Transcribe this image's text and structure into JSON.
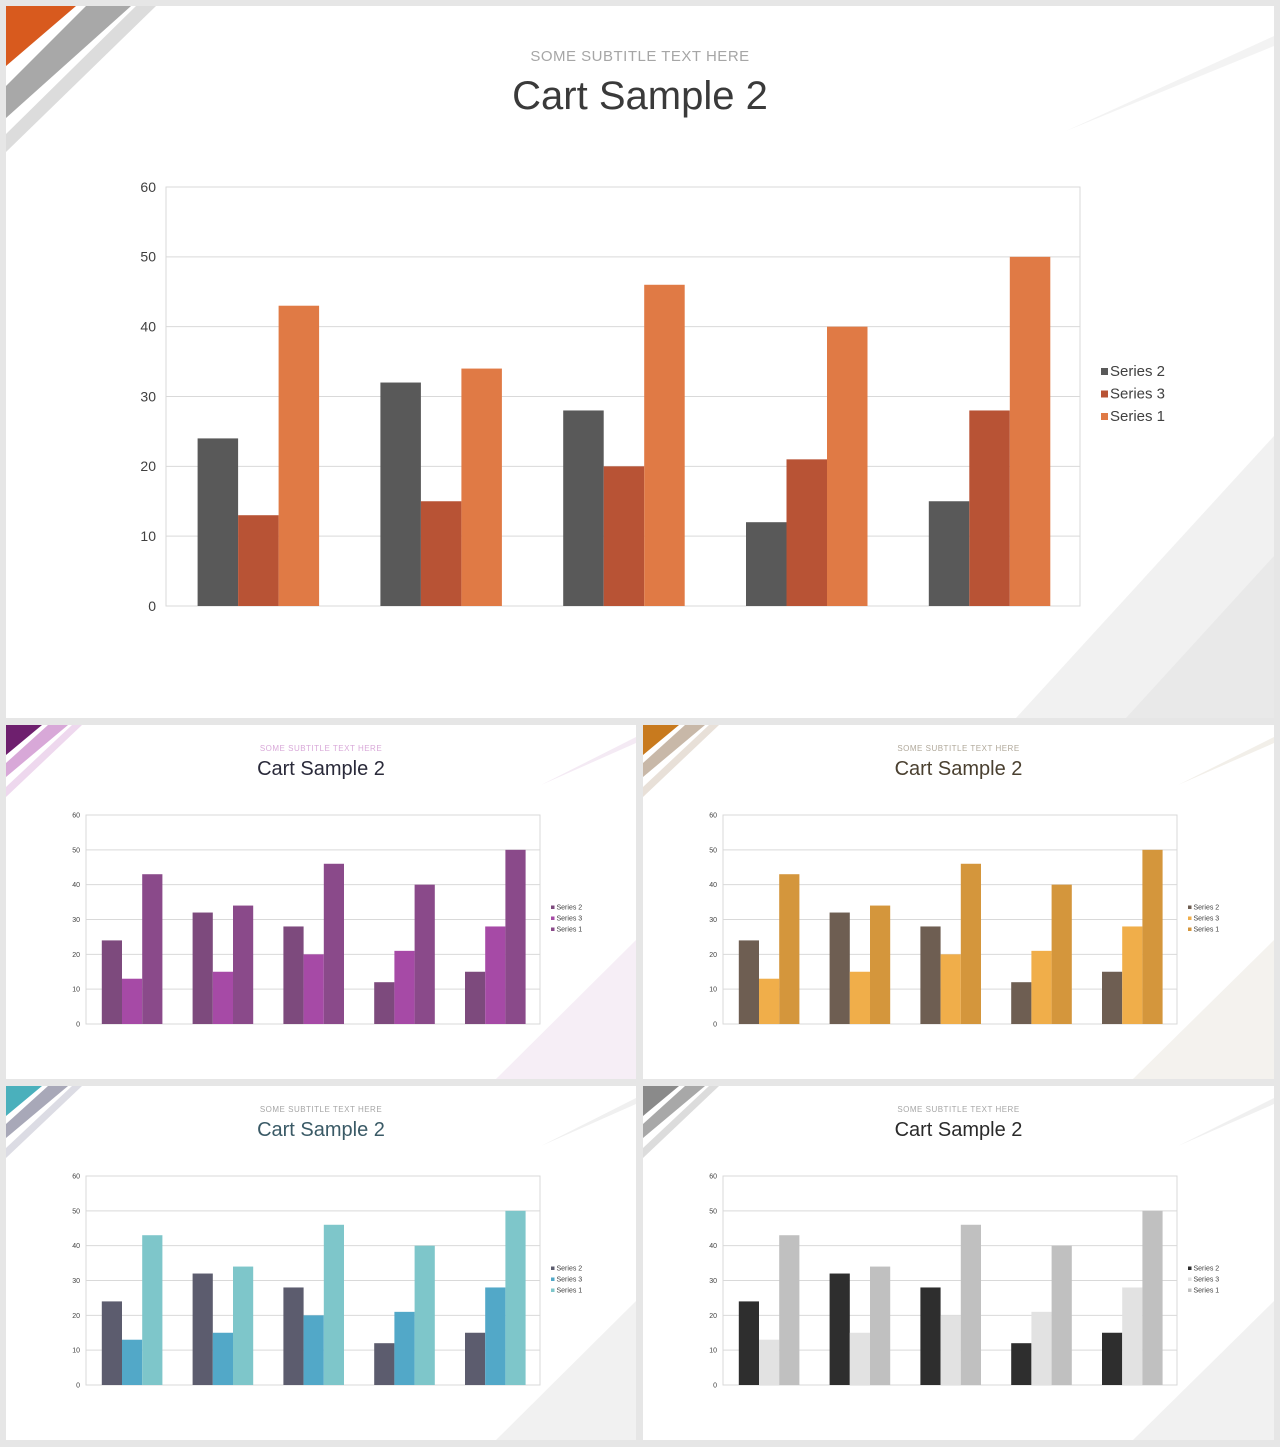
{
  "slides": [
    {
      "id": "main",
      "subtitle": "SOME  SUBTITLE  TEXT HERE",
      "title": "Cart Sample 2",
      "title_color": "#3a3a3a",
      "subtitle_color": "#a6a6a6",
      "accent_color": "#d85a1e",
      "series_colors": {
        "Series 2": "#595959",
        "Series 3": "#b85335",
        "Series 1": "#e07a45"
      },
      "chart_data": {
        "type": "bar",
        "categories": [
          "",
          "",
          "",
          "",
          ""
        ],
        "series": [
          {
            "name": "Series 2",
            "values": [
              24,
              32,
              28,
              12,
              15
            ]
          },
          {
            "name": "Series 3",
            "values": [
              13,
              15,
              20,
              21,
              28
            ]
          },
          {
            "name": "Series 1",
            "values": [
              43,
              34,
              46,
              40,
              50
            ]
          }
        ],
        "ylim": [
          0,
          60
        ],
        "yticks": [
          0,
          10,
          20,
          30,
          40,
          50,
          60
        ],
        "grid": true,
        "legend_position": "right"
      }
    },
    {
      "id": "s1",
      "subtitle": "SOME  SUBTITLE  TEXT HERE",
      "title": "Cart Sample 2",
      "title_color": "#2a2a3a",
      "subtitle_color": "#d9a9d9",
      "accent_color": "#6e1f6e",
      "series_colors": {
        "Series 2": "#7d4a7d",
        "Series 3": "#a64aa6",
        "Series 1": "#8a4a8a"
      },
      "chart_data": {
        "type": "bar",
        "categories": [
          "",
          "",
          "",
          "",
          ""
        ],
        "series": [
          {
            "name": "Series 2",
            "values": [
              24,
              32,
              28,
              12,
              15
            ]
          },
          {
            "name": "Series 3",
            "values": [
              13,
              15,
              20,
              21,
              28
            ]
          },
          {
            "name": "Series 1",
            "values": [
              43,
              34,
              46,
              40,
              50
            ]
          }
        ],
        "ylim": [
          0,
          60
        ],
        "yticks": [
          0,
          10,
          20,
          30,
          40,
          50,
          60
        ],
        "grid": true,
        "legend_position": "right"
      }
    },
    {
      "id": "s2",
      "subtitle": "SOME  SUBTITLE  TEXT HERE",
      "title": "Cart Sample 2",
      "title_color": "#4a4030",
      "subtitle_color": "#b0a89a",
      "accent_color": "#c87a1e",
      "series_colors": {
        "Series 2": "#6e5e52",
        "Series 3": "#f0ae4a",
        "Series 1": "#d4963c"
      },
      "chart_data": {
        "type": "bar",
        "categories": [
          "",
          "",
          "",
          "",
          ""
        ],
        "series": [
          {
            "name": "Series 2",
            "values": [
              24,
              32,
              28,
              12,
              15
            ]
          },
          {
            "name": "Series 3",
            "values": [
              13,
              15,
              20,
              21,
              28
            ]
          },
          {
            "name": "Series 1",
            "values": [
              43,
              34,
              46,
              40,
              50
            ]
          }
        ],
        "ylim": [
          0,
          60
        ],
        "yticks": [
          0,
          10,
          20,
          30,
          40,
          50,
          60
        ],
        "grid": true,
        "legend_position": "right"
      }
    },
    {
      "id": "s3",
      "subtitle": "SOME  SUBTITLE  TEXT HERE",
      "title": "Cart Sample 2",
      "title_color": "#3a5a66",
      "subtitle_color": "#a6a6a6",
      "accent_color": "#4ab0bc",
      "series_colors": {
        "Series 2": "#5c5c6e",
        "Series 3": "#52a8c8",
        "Series 1": "#7ec6ca"
      },
      "chart_data": {
        "type": "bar",
        "categories": [
          "",
          "",
          "",
          "",
          ""
        ],
        "series": [
          {
            "name": "Series 2",
            "values": [
              24,
              32,
              28,
              12,
              15
            ]
          },
          {
            "name": "Series 3",
            "values": [
              13,
              15,
              20,
              21,
              28
            ]
          },
          {
            "name": "Series 1",
            "values": [
              43,
              34,
              46,
              40,
              50
            ]
          }
        ],
        "ylim": [
          0,
          60
        ],
        "yticks": [
          0,
          10,
          20,
          30,
          40,
          50,
          60
        ],
        "grid": true,
        "legend_position": "right"
      }
    },
    {
      "id": "s4",
      "subtitle": "SOME  SUBTITLE  TEXT HERE",
      "title": "Cart Sample 2",
      "title_color": "#2a2a2a",
      "subtitle_color": "#a6a6a6",
      "accent_color": "#8a8a8a",
      "series_colors": {
        "Series 2": "#2e2e2e",
        "Series 3": "#e2e2e2",
        "Series 1": "#c0c0c0"
      },
      "chart_data": {
        "type": "bar",
        "categories": [
          "",
          "",
          "",
          "",
          ""
        ],
        "series": [
          {
            "name": "Series 2",
            "values": [
              24,
              32,
              28,
              12,
              15
            ]
          },
          {
            "name": "Series 3",
            "values": [
              13,
              15,
              20,
              21,
              28
            ]
          },
          {
            "name": "Series 1",
            "values": [
              43,
              34,
              46,
              40,
              50
            ]
          }
        ],
        "ylim": [
          0,
          60
        ],
        "yticks": [
          0,
          10,
          20,
          30,
          40,
          50,
          60
        ],
        "grid": true,
        "legend_position": "right"
      }
    }
  ]
}
